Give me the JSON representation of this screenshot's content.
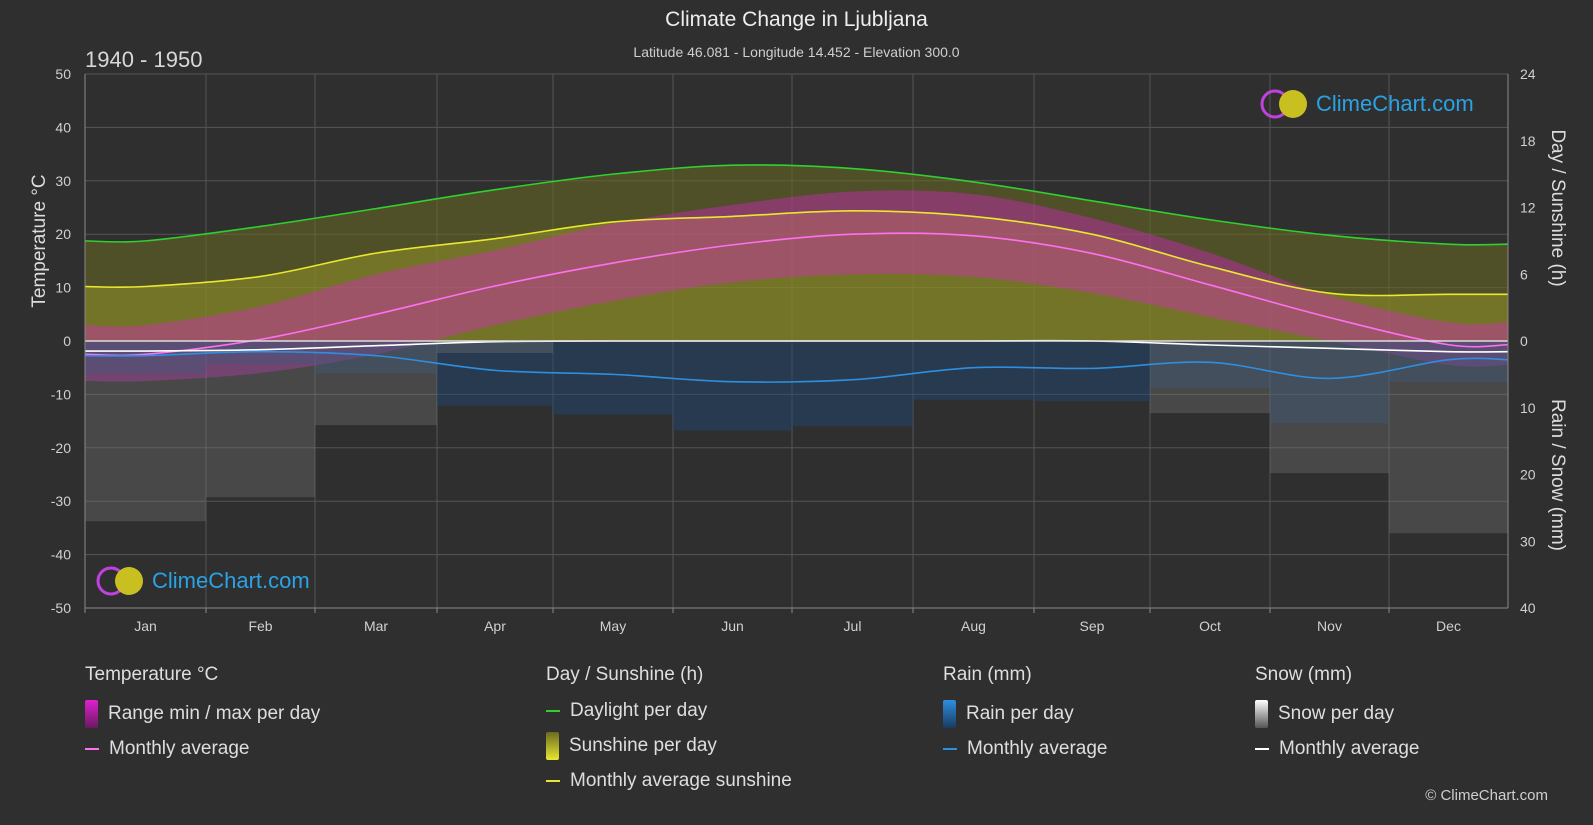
{
  "title": "Climate Change in Ljubljana",
  "subtitle": "Latitude 46.081 - Longitude 14.452 - Elevation 300.0",
  "period": "1940 - 1950",
  "brand": "ClimeChart.com",
  "copyright": "© ClimeChart.com",
  "colors": {
    "background": "#2f2f2f",
    "temp_range": "#e020d0",
    "temp_avg": "#ff70f0",
    "daylight": "#30d030",
    "sunshine_fill": "#b8b820",
    "sunshine_avg": "#e8e830",
    "rain": "#2a78c8",
    "rain_avg": "#2e8fe0",
    "snow": "#9a9a9a",
    "snow_avg": "#ffffff",
    "brand": "#2aa3e6"
  },
  "chart_data": {
    "type": "line",
    "title": "Climate Change in Ljubljana",
    "categories": [
      "Jan",
      "Feb",
      "Mar",
      "Apr",
      "May",
      "Jun",
      "Jul",
      "Aug",
      "Sep",
      "Oct",
      "Nov",
      "Dec"
    ],
    "axes": {
      "left": {
        "label": "Temperature °C",
        "range": [
          -50,
          50
        ],
        "ticks": [
          50,
          40,
          30,
          20,
          10,
          0,
          -10,
          -20,
          -30,
          -40,
          -50
        ]
      },
      "right_top": {
        "label": "Day / Sunshine (h)",
        "range": [
          0,
          24
        ],
        "ticks": [
          24,
          18,
          12,
          6,
          0
        ]
      },
      "right_bottom": {
        "label": "Rain / Snow (mm)",
        "range": [
          0,
          40
        ],
        "ticks": [
          0,
          10,
          20,
          30,
          40
        ]
      }
    },
    "grid": true,
    "series": [
      {
        "name": "Daylight per day",
        "axis": "hours",
        "values": [
          9.0,
          10.3,
          11.9,
          13.6,
          15.0,
          15.8,
          15.5,
          14.3,
          12.6,
          10.9,
          9.5,
          8.7
        ]
      },
      {
        "name": "Monthly average sunshine",
        "axis": "hours",
        "values": [
          4.9,
          5.8,
          7.9,
          9.2,
          10.7,
          11.2,
          11.7,
          11.2,
          9.6,
          6.7,
          4.3,
          4.2
        ]
      },
      {
        "name": "Temperature monthly average",
        "axis": "temp",
        "values": [
          -2.5,
          0.3,
          5.0,
          10.3,
          14.6,
          18.0,
          20.0,
          19.7,
          16.4,
          10.5,
          4.4,
          -0.7
        ]
      },
      {
        "name": "Temperature max per day (typical)",
        "axis": "temp",
        "values": [
          3.0,
          6.5,
          12.5,
          17.0,
          22.0,
          25.5,
          28.0,
          27.5,
          23.0,
          16.5,
          8.5,
          3.5
        ]
      },
      {
        "name": "Temperature min per day (typical)",
        "axis": "temp",
        "values": [
          -7.5,
          -6.0,
          -2.5,
          3.0,
          7.5,
          11.0,
          12.5,
          12.0,
          9.0,
          4.5,
          0.0,
          -4.5
        ]
      },
      {
        "name": "Rain monthly average",
        "axis": "mm",
        "values": [
          2.2,
          1.6,
          2.2,
          4.4,
          5.0,
          6.1,
          5.8,
          4.0,
          4.1,
          3.2,
          5.6,
          2.8
        ]
      },
      {
        "name": "Snow monthly average",
        "axis": "mm",
        "values": [
          1.5,
          1.3,
          0.7,
          0.1,
          0.0,
          0.0,
          0.0,
          0.0,
          0.0,
          0.6,
          1.1,
          1.6
        ]
      }
    ]
  },
  "legend": {
    "temperature": {
      "title": "Temperature °C",
      "items": [
        "Range min / max per day",
        "Monthly average"
      ]
    },
    "sunshine": {
      "title": "Day / Sunshine (h)",
      "items": [
        "Daylight per day",
        "Sunshine per day",
        "Monthly average sunshine"
      ]
    },
    "rain": {
      "title": "Rain (mm)",
      "items": [
        "Rain per day",
        "Monthly average"
      ]
    },
    "snow": {
      "title": "Snow (mm)",
      "items": [
        "Snow per day",
        "Monthly average"
      ]
    }
  }
}
